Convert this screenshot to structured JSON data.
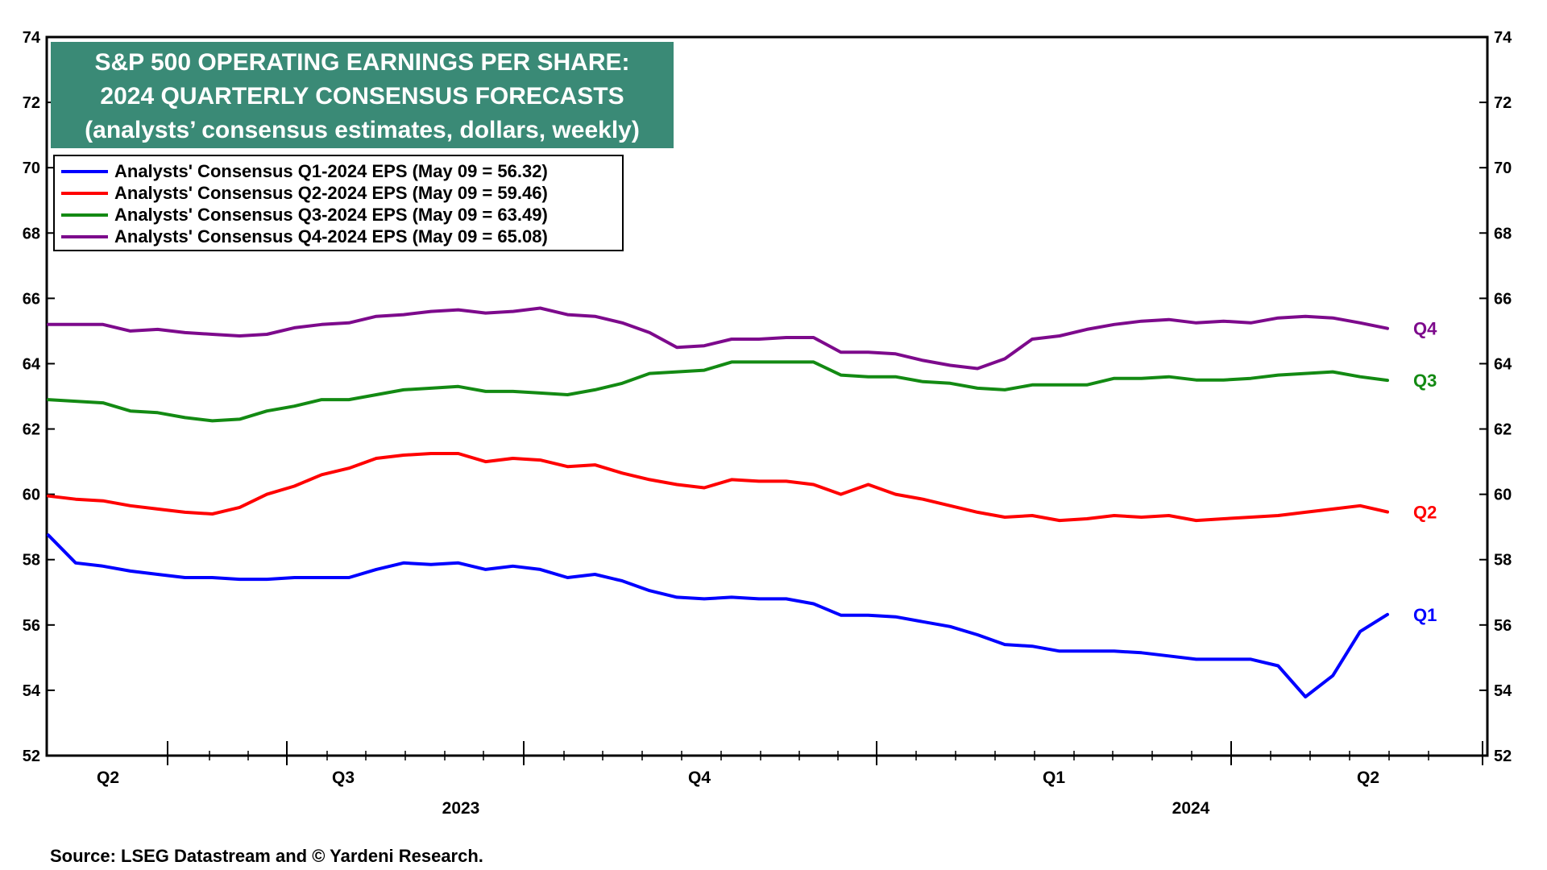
{
  "title": {
    "line1": "S&P 500 OPERATING EARNINGS PER SHARE:",
    "line2": "2024 QUARTERLY CONSENSUS FORECASTS",
    "line3": "(analysts’ consensus estimates, dollars, weekly)"
  },
  "source": "Source: LSEG Datastream and © Yardeni Research.",
  "colors": {
    "title_bg": "#3a8a76",
    "q1": "#0000ff",
    "q2": "#ff0000",
    "q3": "#138a13",
    "q4": "#7d0a8c"
  },
  "chart_data": {
    "type": "line",
    "title": "S&P 500 OPERATING EARNINGS PER SHARE: 2024 QUARTERLY CONSENSUS FORECASTS",
    "subtitle": "(analysts’ consensus estimates, dollars, weekly)",
    "xlabel": "",
    "ylabel": "",
    "ylim": [
      52,
      74
    ],
    "yticks": [
      52,
      54,
      56,
      58,
      60,
      62,
      64,
      66,
      68,
      70,
      72,
      74
    ],
    "y_axis_both_sides": true,
    "grid": false,
    "legend_position": "top-left",
    "x_tick_labels": [
      "Q2",
      "Q3",
      "Q4",
      "Q1",
      "Q2"
    ],
    "x_year_labels": [
      "2023",
      "2024"
    ],
    "series": [
      {
        "name": "Analysts' Consensus Q1-2024 EPS (May 09 = 56.32)",
        "end_label": "Q1",
        "color_key": "q1",
        "values": [
          58.75,
          57.9,
          57.8,
          57.65,
          57.55,
          57.45,
          57.45,
          57.4,
          57.4,
          57.45,
          57.45,
          57.45,
          57.7,
          57.9,
          57.85,
          57.9,
          57.7,
          57.8,
          57.7,
          57.45,
          57.55,
          57.35,
          57.05,
          56.85,
          56.8,
          56.85,
          56.8,
          56.8,
          56.65,
          56.3,
          56.3,
          56.25,
          56.1,
          55.95,
          55.7,
          55.4,
          55.35,
          55.2,
          55.2,
          55.2,
          55.15,
          55.05,
          54.95,
          54.95,
          54.95,
          54.75,
          53.8,
          54.45,
          55.8,
          56.32
        ]
      },
      {
        "name": "Analysts' Consensus Q2-2024 EPS (May 09 = 59.46)",
        "end_label": "Q2",
        "color_key": "q2",
        "values": [
          59.95,
          59.85,
          59.8,
          59.65,
          59.55,
          59.45,
          59.4,
          59.6,
          60.0,
          60.25,
          60.6,
          60.8,
          61.1,
          61.2,
          61.25,
          61.25,
          61.0,
          61.1,
          61.05,
          60.85,
          60.9,
          60.65,
          60.45,
          60.3,
          60.2,
          60.45,
          60.4,
          60.4,
          60.3,
          60.0,
          60.3,
          60.0,
          59.85,
          59.65,
          59.45,
          59.3,
          59.35,
          59.2,
          59.25,
          59.35,
          59.3,
          59.35,
          59.2,
          59.25,
          59.3,
          59.35,
          59.45,
          59.55,
          59.65,
          59.46
        ]
      },
      {
        "name": "Analysts' Consensus Q3-2024 EPS (May 09 = 63.49)",
        "end_label": "Q3",
        "color_key": "q3",
        "values": [
          62.9,
          62.85,
          62.8,
          62.55,
          62.5,
          62.35,
          62.25,
          62.3,
          62.55,
          62.7,
          62.9,
          62.9,
          63.05,
          63.2,
          63.25,
          63.3,
          63.15,
          63.15,
          63.1,
          63.05,
          63.2,
          63.4,
          63.7,
          63.75,
          63.8,
          64.05,
          64.05,
          64.05,
          64.05,
          63.65,
          63.6,
          63.6,
          63.45,
          63.4,
          63.25,
          63.2,
          63.35,
          63.35,
          63.35,
          63.55,
          63.55,
          63.6,
          63.5,
          63.5,
          63.55,
          63.65,
          63.7,
          63.75,
          63.6,
          63.49
        ]
      },
      {
        "name": "Analysts' Consensus Q4-2024 EPS (May 09 = 65.08)",
        "end_label": "Q4",
        "color_key": "q4",
        "values": [
          65.2,
          65.2,
          65.2,
          65.0,
          65.05,
          64.95,
          64.9,
          64.85,
          64.9,
          65.1,
          65.2,
          65.25,
          65.45,
          65.5,
          65.6,
          65.65,
          65.55,
          65.6,
          65.7,
          65.5,
          65.45,
          65.25,
          64.95,
          64.5,
          64.55,
          64.75,
          64.75,
          64.8,
          64.8,
          64.35,
          64.35,
          64.3,
          64.1,
          63.95,
          63.85,
          64.15,
          64.75,
          64.85,
          65.05,
          65.2,
          65.3,
          65.35,
          65.25,
          65.3,
          65.25,
          65.4,
          65.45,
          65.4,
          65.25,
          65.08
        ]
      }
    ]
  }
}
